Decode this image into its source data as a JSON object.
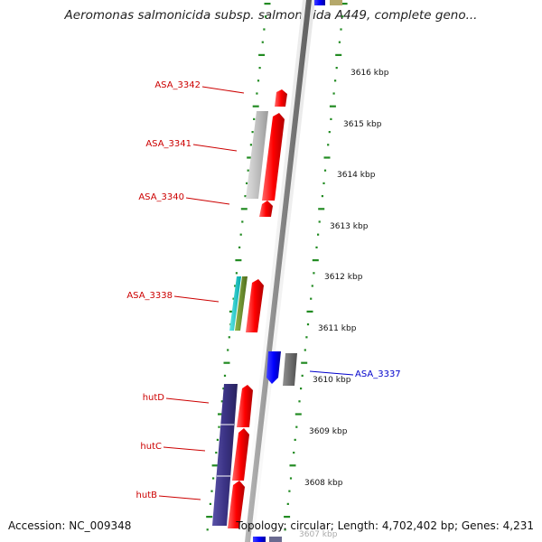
{
  "title": "Aeromonas salmonicida subsp. salmonicida A449, complete geno...",
  "footer": {
    "accession": "Accession: NC_009348",
    "topology": "Topology: circular; Length: 4,702,402 bp; Genes: 4,231"
  },
  "colors": {
    "background": "#ffffff",
    "forward_strand": "#ff0000",
    "reverse_strand": "#0000ff",
    "hut_operon": "#3b3385",
    "gray_gene": "#c0c0c0",
    "dark_gray_gene": "#707070",
    "cyan_gene": "#00c8c8",
    "olive_gene": "#6b8e23",
    "ticks": "#228b22",
    "label_forward": "#cc0000",
    "label_reverse": "#0000cc"
  },
  "scale": {
    "unit": "kbp",
    "ticks": [
      {
        "value": 3616,
        "label": "3616 kbp"
      },
      {
        "value": 3615,
        "label": "3615 kbp"
      },
      {
        "value": 3614,
        "label": "3614 kbp"
      },
      {
        "value": 3613,
        "label": "3613 kbp"
      },
      {
        "value": 3612,
        "label": "3612 kbp"
      },
      {
        "value": 3611,
        "label": "3611 kbp"
      },
      {
        "value": 3610,
        "label": "3610 kbp"
      },
      {
        "value": 3609,
        "label": "3609 kbp"
      },
      {
        "value": 3608,
        "label": "3608 kbp"
      },
      {
        "value": 3607,
        "label": "3607 kbp"
      }
    ]
  },
  "gene_labels": [
    {
      "name": "ASA_3342",
      "strand": "forward"
    },
    {
      "name": "ASA_3341",
      "strand": "forward"
    },
    {
      "name": "ASA_3340",
      "strand": "forward"
    },
    {
      "name": "ASA_3338",
      "strand": "forward"
    },
    {
      "name": "ASA_3337",
      "strand": "reverse"
    },
    {
      "name": "hutD",
      "strand": "forward"
    },
    {
      "name": "hutC",
      "strand": "forward"
    },
    {
      "name": "hutB",
      "strand": "forward"
    }
  ]
}
